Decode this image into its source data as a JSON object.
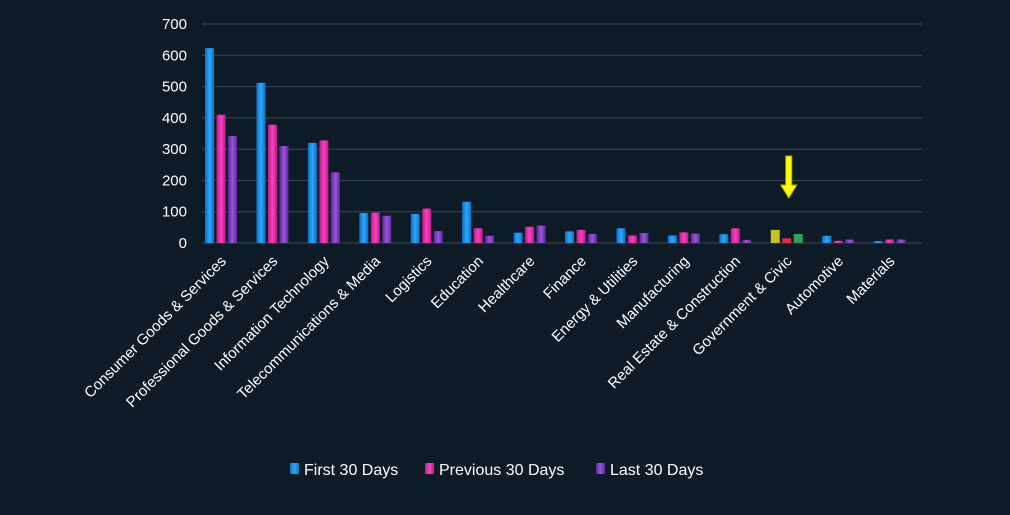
{
  "colors": {
    "background": "#0d1b26",
    "gridline": "#3a4650",
    "text": "#ffffff",
    "first_30": "#1f9ae6",
    "previous_30": "#e62fb0",
    "last_30": "#8040c0",
    "highlight_first": "#c8c21e",
    "highlight_previous": "#e6283a",
    "highlight_last": "#2fa05a",
    "arrow": "#ffff00"
  },
  "chart_data": {
    "type": "bar",
    "title": "",
    "xlabel": "",
    "ylabel": "",
    "ylim": [
      0,
      700
    ],
    "yticks": [
      0,
      100,
      200,
      300,
      400,
      500,
      600,
      700
    ],
    "grid": true,
    "legend_position": "bottom",
    "categories": [
      "Consumer Goods &  Services",
      "Professional Goods & Services",
      "Information Technology",
      "Telecommunications & Media",
      "Logistics",
      "Education",
      "Healthcare",
      "Finance",
      "Energy & Utilities",
      "Manufacturing",
      "Real Estate & Construction",
      "Government & Civic",
      "Automotive",
      "Materials"
    ],
    "series": [
      {
        "name": "First 30 Days",
        "values": [
          623,
          512,
          320,
          96,
          93,
          132,
          33,
          37,
          47,
          24,
          28,
          42,
          23,
          6
        ]
      },
      {
        "name": "Previous 30 Days",
        "values": [
          410,
          378,
          328,
          97,
          110,
          47,
          52,
          42,
          24,
          34,
          47,
          15,
          7,
          11
        ]
      },
      {
        "name": "Last 30 Days",
        "values": [
          342,
          310,
          226,
          87,
          38,
          23,
          56,
          29,
          32,
          30,
          10,
          29,
          11,
          11
        ]
      }
    ],
    "highlighted_category": "Government & Civic",
    "annotation": "yellow arrow pointing down at Government & Civic"
  }
}
